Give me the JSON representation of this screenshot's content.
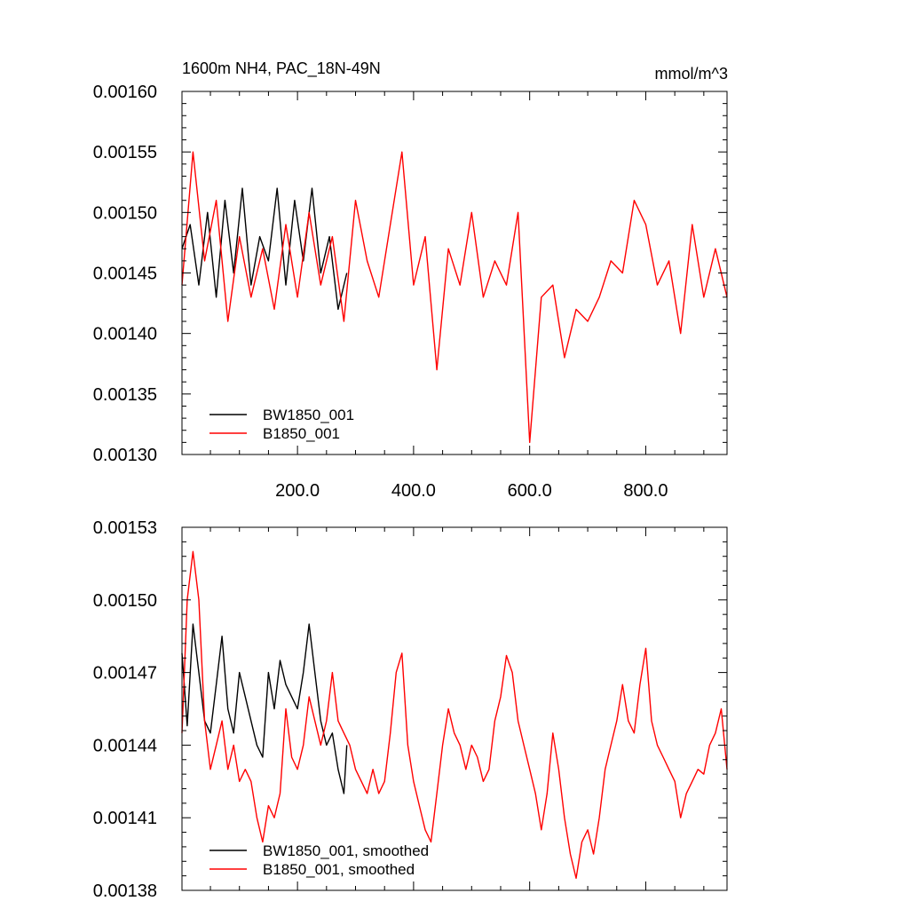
{
  "figure": {
    "title_left": "1600m NH4, PAC_18N-49N",
    "title_right": "mmol/m^3"
  },
  "chart_data": [
    {
      "type": "line",
      "title": "1600m NH4, PAC_18N-49N",
      "units": "mmol/m^3",
      "xlabel": "",
      "ylabel": "",
      "xlim": [
        1,
        940
      ],
      "ylim": [
        0.0013,
        0.0016
      ],
      "x_ticks": [
        200,
        400,
        600,
        800
      ],
      "x_tick_labels": [
        "200.0",
        "400.0",
        "600.0",
        "800.0"
      ],
      "y_ticks": [
        0.0013,
        0.00135,
        0.0014,
        0.00145,
        0.0015,
        0.00155,
        0.0016
      ],
      "y_tick_labels": [
        "0.00130",
        "0.00135",
        "0.00140",
        "0.00145",
        "0.00150",
        "0.00155",
        "0.00160"
      ],
      "grid": false,
      "legend_position": "bottom-left",
      "series": [
        {
          "name": "BW1850_001",
          "color": "#000000",
          "x": [
            1,
            15,
            30,
            45,
            60,
            75,
            90,
            105,
            120,
            135,
            150,
            165,
            180,
            195,
            210,
            225,
            240,
            255,
            270,
            285
          ],
          "values": [
            0.00147,
            0.00149,
            0.00144,
            0.0015,
            0.00143,
            0.00151,
            0.00145,
            0.00152,
            0.00144,
            0.00148,
            0.00146,
            0.00152,
            0.00144,
            0.00151,
            0.00146,
            0.00152,
            0.00145,
            0.00148,
            0.00142,
            0.00145
          ]
        },
        {
          "name": "B1850_001",
          "color": "#ff0000",
          "x": [
            1,
            20,
            40,
            60,
            80,
            100,
            120,
            140,
            160,
            180,
            200,
            220,
            240,
            260,
            280,
            300,
            320,
            340,
            360,
            380,
            400,
            420,
            440,
            460,
            480,
            500,
            520,
            540,
            560,
            580,
            600,
            620,
            640,
            660,
            680,
            700,
            720,
            740,
            760,
            780,
            800,
            820,
            840,
            860,
            880,
            900,
            920,
            940
          ],
          "values": [
            0.00144,
            0.00155,
            0.00146,
            0.00151,
            0.00141,
            0.00148,
            0.00143,
            0.00147,
            0.00142,
            0.00149,
            0.00143,
            0.0015,
            0.00144,
            0.00148,
            0.00141,
            0.00151,
            0.00146,
            0.00143,
            0.00149,
            0.00155,
            0.00144,
            0.00148,
            0.00137,
            0.00147,
            0.00144,
            0.0015,
            0.00143,
            0.00146,
            0.00144,
            0.0015,
            0.00131,
            0.00143,
            0.00144,
            0.00138,
            0.00142,
            0.00141,
            0.00143,
            0.00146,
            0.00145,
            0.00151,
            0.00149,
            0.00144,
            0.00146,
            0.0014,
            0.00149,
            0.00143,
            0.00147,
            0.00143
          ]
        }
      ]
    },
    {
      "type": "line",
      "xlabel": "",
      "ylabel": "",
      "xlim": [
        1,
        940
      ],
      "ylim": [
        0.00138,
        0.00153
      ],
      "x_ticks": [
        200,
        400,
        600,
        800
      ],
      "y_ticks": [
        0.00138,
        0.00141,
        0.00144,
        0.00147,
        0.0015,
        0.00153
      ],
      "y_tick_labels": [
        "0.00138",
        "0.00141",
        "0.00144",
        "0.00147",
        "0.00150",
        "0.00153"
      ],
      "grid": false,
      "legend_position": "bottom-left",
      "series": [
        {
          "name": "BW1850_001, smoothed",
          "color": "#000000",
          "x": [
            1,
            10,
            20,
            30,
            40,
            50,
            60,
            70,
            80,
            90,
            100,
            110,
            120,
            130,
            140,
            150,
            160,
            170,
            180,
            190,
            200,
            210,
            220,
            230,
            240,
            250,
            260,
            270,
            280,
            285
          ],
          "values": [
            0.001478,
            0.001448,
            0.00149,
            0.00147,
            0.00145,
            0.001445,
            0.001465,
            0.001485,
            0.001455,
            0.001445,
            0.00147,
            0.00146,
            0.00145,
            0.00144,
            0.001435,
            0.00147,
            0.001455,
            0.001475,
            0.001465,
            0.00146,
            0.001455,
            0.00147,
            0.00149,
            0.00147,
            0.00145,
            0.00144,
            0.001445,
            0.00143,
            0.00142,
            0.00144
          ]
        },
        {
          "name": "B1850_001, smoothed",
          "color": "#ff0000",
          "x": [
            1,
            10,
            20,
            30,
            40,
            50,
            60,
            70,
            80,
            90,
            100,
            110,
            120,
            130,
            140,
            150,
            160,
            170,
            180,
            190,
            200,
            210,
            220,
            230,
            240,
            250,
            260,
            270,
            280,
            290,
            300,
            310,
            320,
            330,
            340,
            350,
            360,
            370,
            380,
            390,
            400,
            410,
            420,
            430,
            440,
            450,
            460,
            470,
            480,
            490,
            500,
            510,
            520,
            530,
            540,
            550,
            560,
            570,
            580,
            590,
            600,
            610,
            620,
            630,
            640,
            650,
            660,
            670,
            680,
            690,
            700,
            710,
            720,
            730,
            740,
            750,
            760,
            770,
            780,
            790,
            800,
            810,
            820,
            830,
            840,
            850,
            860,
            870,
            880,
            890,
            900,
            910,
            920,
            930,
            940
          ],
          "values": [
            0.001445,
            0.0015,
            0.00152,
            0.0015,
            0.00145,
            0.00143,
            0.00144,
            0.00145,
            0.00143,
            0.00144,
            0.001425,
            0.00143,
            0.001425,
            0.00141,
            0.0014,
            0.001415,
            0.00141,
            0.00142,
            0.001455,
            0.001435,
            0.00143,
            0.00144,
            0.00146,
            0.00145,
            0.00144,
            0.00145,
            0.00147,
            0.00145,
            0.001445,
            0.00144,
            0.00143,
            0.001425,
            0.00142,
            0.00143,
            0.00142,
            0.001425,
            0.001445,
            0.00147,
            0.001478,
            0.00144,
            0.001425,
            0.001415,
            0.001405,
            0.0014,
            0.00142,
            0.00144,
            0.001455,
            0.001445,
            0.00144,
            0.00143,
            0.00144,
            0.001435,
            0.001425,
            0.00143,
            0.00145,
            0.00146,
            0.001477,
            0.00147,
            0.00145,
            0.00144,
            0.00143,
            0.00142,
            0.001405,
            0.00142,
            0.001445,
            0.00143,
            0.00141,
            0.001395,
            0.001385,
            0.0014,
            0.001405,
            0.001395,
            0.00141,
            0.00143,
            0.00144,
            0.00145,
            0.001465,
            0.00145,
            0.001445,
            0.001465,
            0.00148,
            0.00145,
            0.00144,
            0.001435,
            0.00143,
            0.001425,
            0.00141,
            0.00142,
            0.001425,
            0.00143,
            0.001428,
            0.00144,
            0.001445,
            0.001455,
            0.00143
          ]
        }
      ]
    }
  ]
}
